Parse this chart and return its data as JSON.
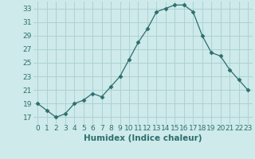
{
  "x": [
    0,
    1,
    2,
    3,
    4,
    5,
    6,
    7,
    8,
    9,
    10,
    11,
    12,
    13,
    14,
    15,
    16,
    17,
    18,
    19,
    20,
    21,
    22,
    23
  ],
  "y": [
    19,
    18,
    17,
    17.5,
    19,
    19.5,
    20.5,
    20,
    21.5,
    23,
    25.5,
    28,
    30,
    32.5,
    33,
    33.5,
    33.5,
    32.5,
    29,
    26.5,
    26,
    24,
    22.5,
    21
  ],
  "line_color": "#2d6e6e",
  "marker": "D",
  "marker_size": 2.5,
  "bg_color": "#ceeaea",
  "grid_color": "#aacece",
  "xlabel": "Humidex (Indice chaleur)",
  "xlim": [
    -0.5,
    23.5
  ],
  "ylim": [
    16,
    34
  ],
  "yticks": [
    17,
    19,
    21,
    23,
    25,
    27,
    29,
    31,
    33
  ],
  "xticks": [
    0,
    1,
    2,
    3,
    4,
    5,
    6,
    7,
    8,
    9,
    10,
    11,
    12,
    13,
    14,
    15,
    16,
    17,
    18,
    19,
    20,
    21,
    22,
    23
  ],
  "tick_color": "#2d6e6e",
  "label_color": "#2d6e6e",
  "xlabel_fontsize": 7.5,
  "tick_fontsize": 6.5
}
